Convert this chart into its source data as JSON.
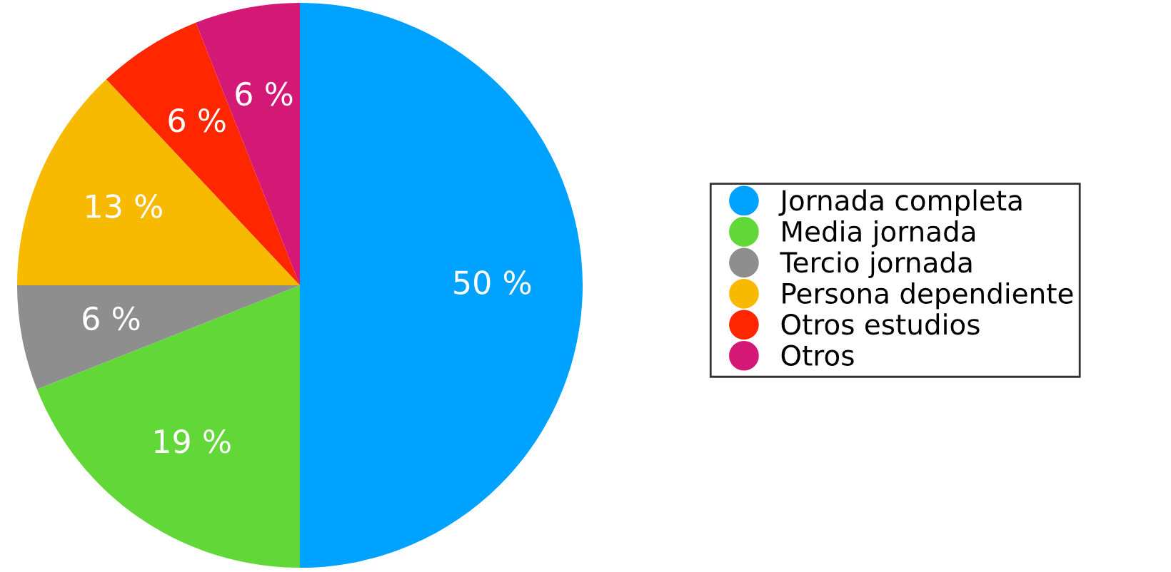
{
  "chart_data": {
    "type": "pie",
    "categories": [
      "Jornada completa",
      "Media jornada",
      "Tercio jornada",
      "Persona dependiente",
      "Otros estudios",
      "Otros"
    ],
    "values": [
      50,
      19,
      6,
      13,
      6,
      6
    ],
    "colors": [
      "#00a2ff",
      "#62d838",
      "#8e8e8e",
      "#f8ba00",
      "#ff2600",
      "#d41876"
    ],
    "value_labels": [
      "50 %",
      "19 %",
      "6 %",
      "13 %",
      "6 %",
      "6 %"
    ],
    "legend": "right"
  }
}
